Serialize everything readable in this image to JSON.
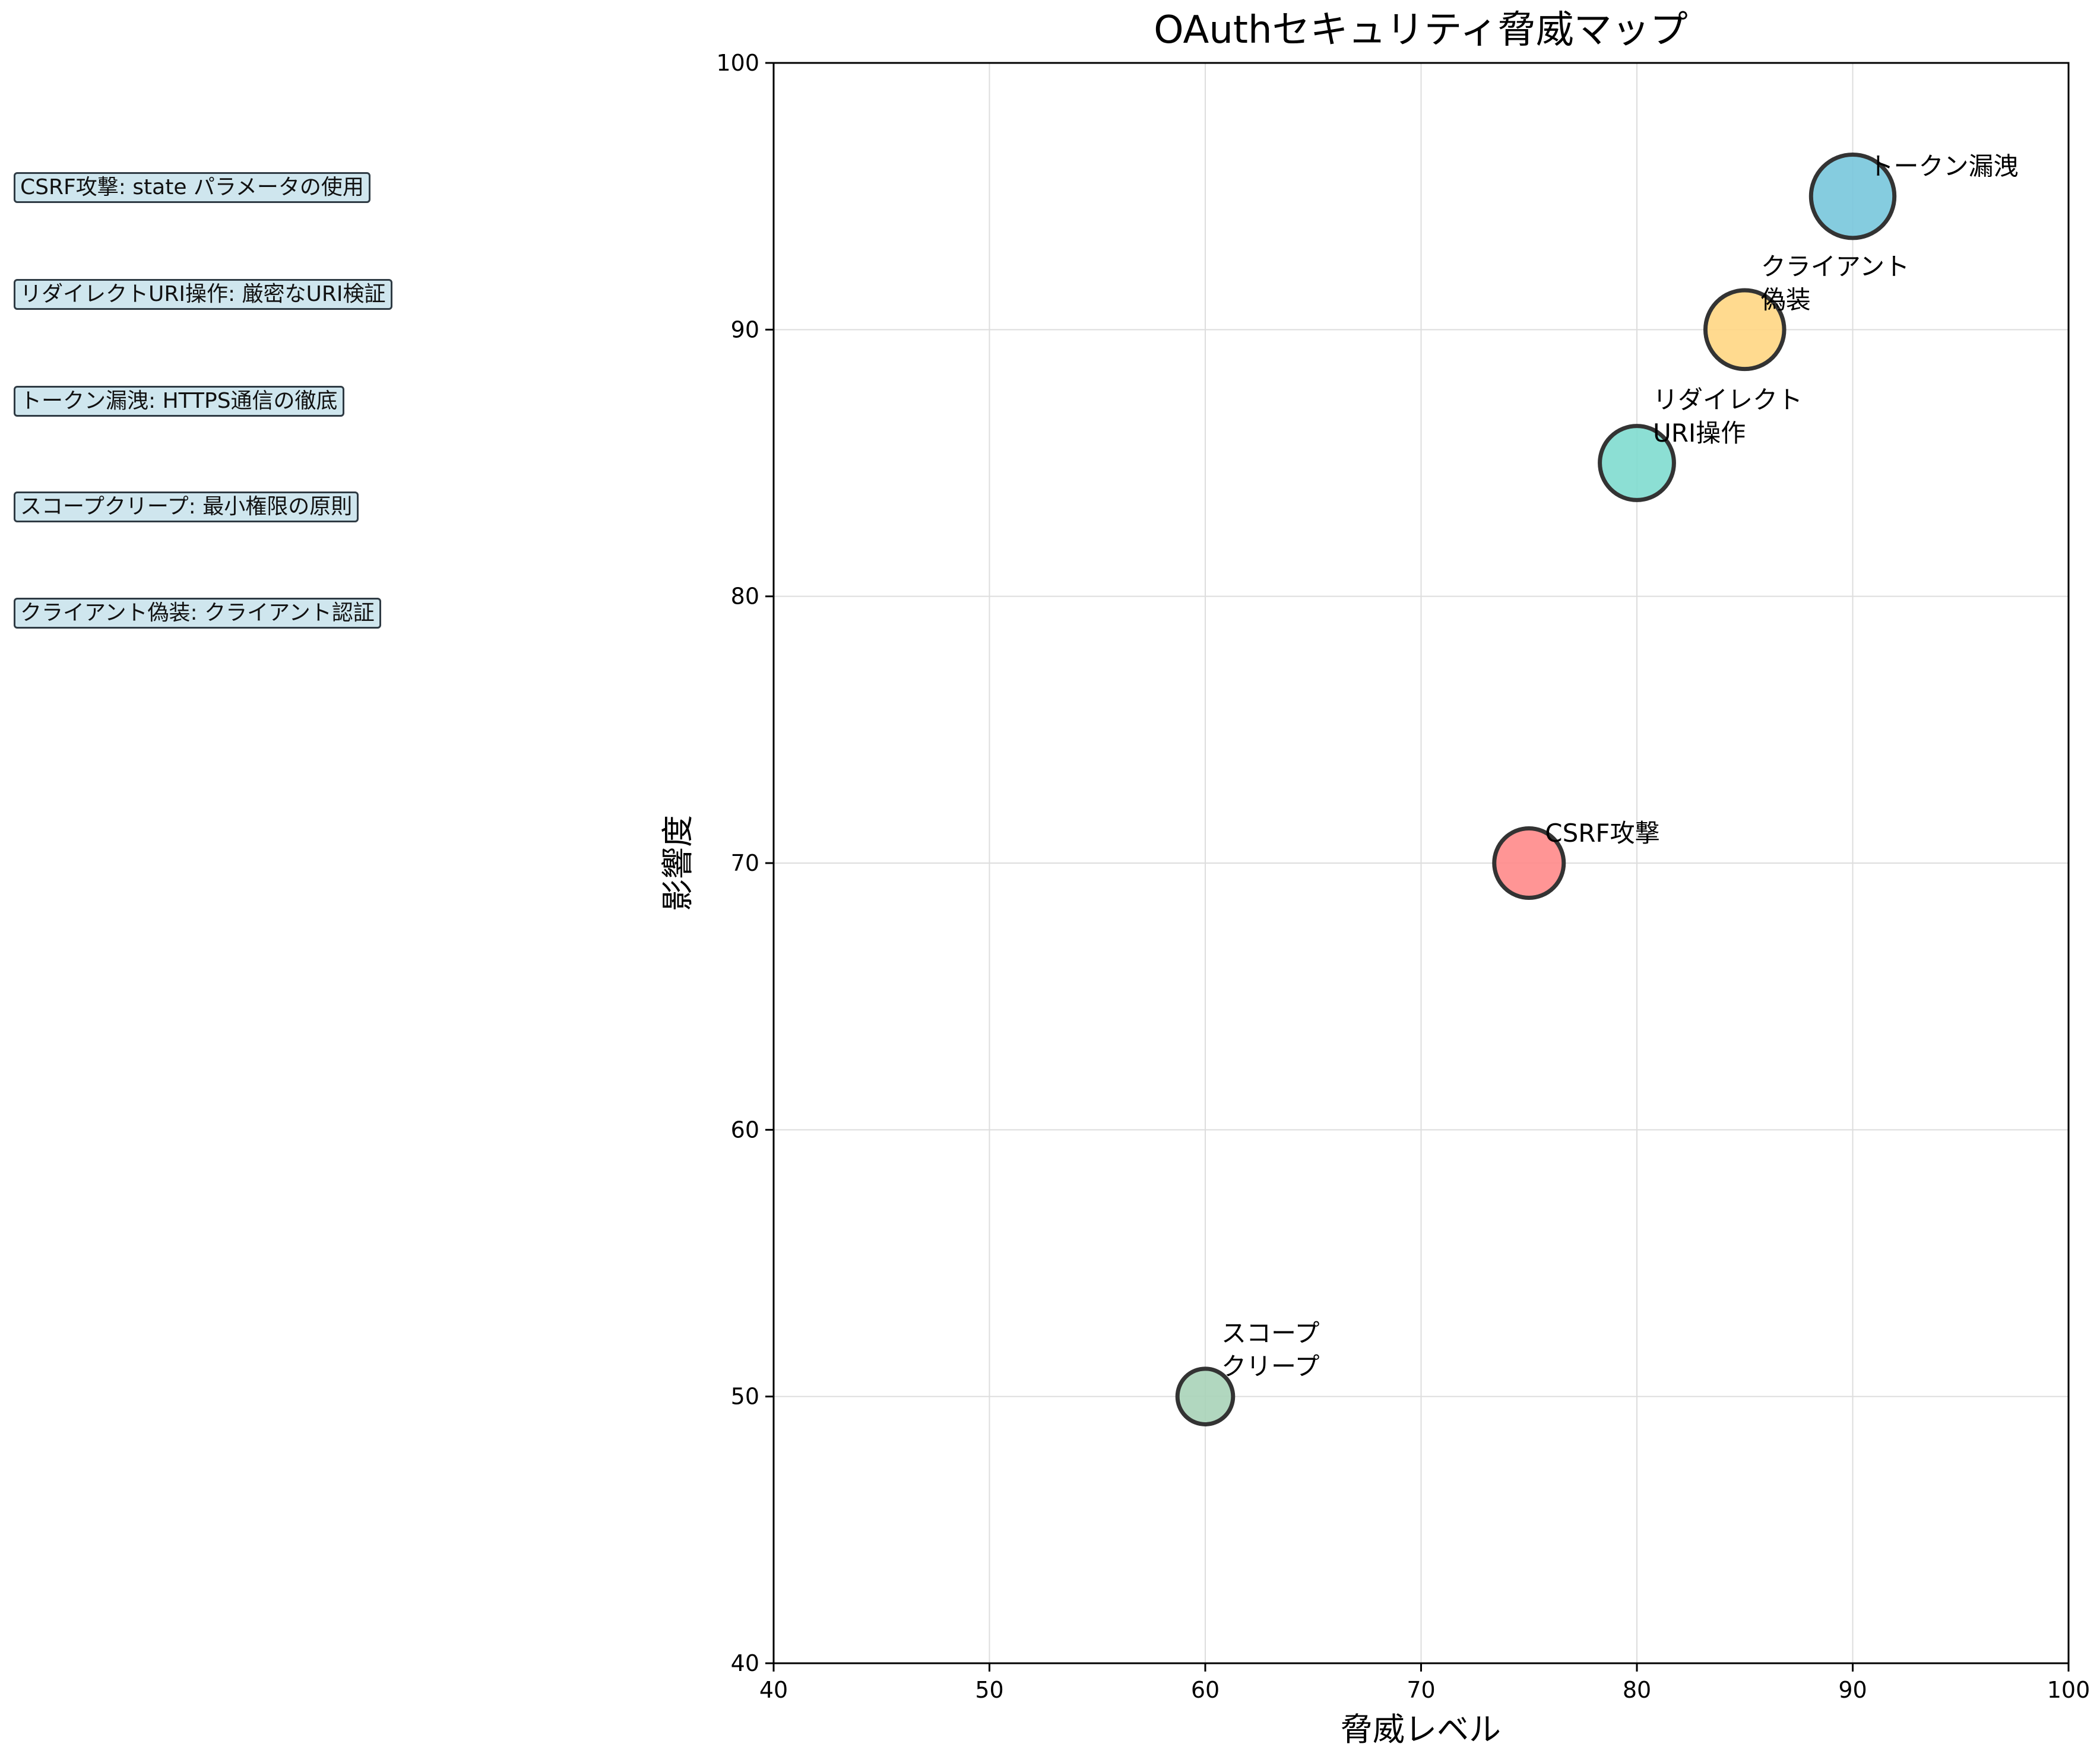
{
  "chart_data": {
    "type": "scatter",
    "title": "OAuthセキュリティ脅威マップ",
    "xlabel": "脅威レベル",
    "ylabel": "影響度",
    "xlim": [
      40,
      100
    ],
    "ylim": [
      40,
      100
    ],
    "xticks": [
      "40",
      "50",
      "60",
      "70",
      "80",
      "90",
      "100"
    ],
    "yticks": [
      "40",
      "50",
      "60",
      "70",
      "80",
      "90",
      "100"
    ],
    "grid": true,
    "points": [
      {
        "label": "CSRF攻撃",
        "x": 75,
        "y": 70,
        "size": 75,
        "color": "#ff8a8a"
      },
      {
        "label": "リダイレクト\nURI操作",
        "x": 80,
        "y": 85,
        "size": 80,
        "color": "#7fdccf"
      },
      {
        "label": "トークン漏洩",
        "x": 90,
        "y": 95,
        "size": 90,
        "color": "#78c6dc"
      },
      {
        "label": "スコープ\nクリープ",
        "x": 60,
        "y": 50,
        "size": 60,
        "color": "#a8d3b8"
      },
      {
        "label": "クライアント\n偽装",
        "x": 85,
        "y": 90,
        "size": 85,
        "color": "#ffd683"
      }
    ],
    "point_edge_color": "#333333"
  },
  "notes": [
    "CSRF攻撃: state パラメータの使用",
    "リダイレクトURI操作: 厳密なURI検証",
    "トークン漏洩: HTTPS通信の徹底",
    "スコープクリープ: 最小権限の原則",
    "クライアント偽装: クライアント認証"
  ],
  "note_box_color": "#cfe6ee"
}
